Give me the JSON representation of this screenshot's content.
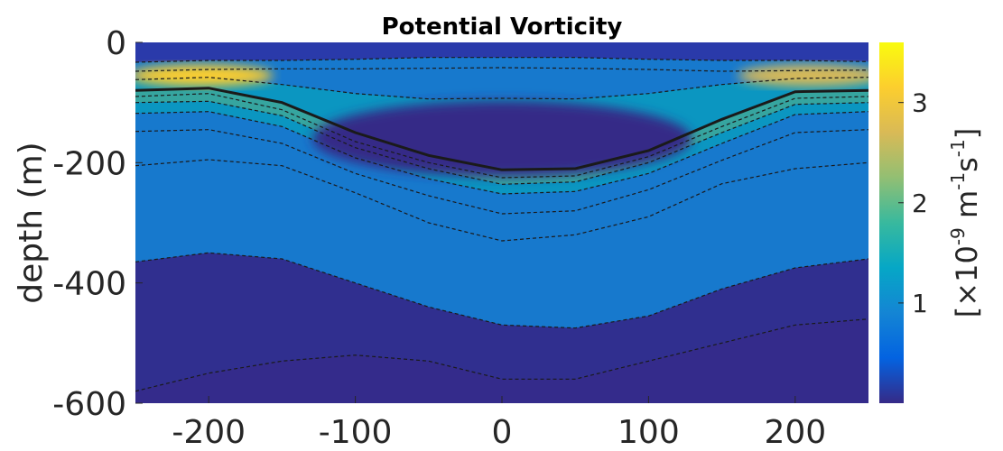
{
  "chart_data": {
    "type": "heatmap",
    "title": "Potential Vorticity",
    "xlabel": "",
    "ylabel": "depth (m)",
    "xlim": [
      -250,
      250
    ],
    "ylim": [
      -600,
      0
    ],
    "xticks": [
      -200,
      -100,
      0,
      100,
      200
    ],
    "yticks": [
      0,
      -200,
      -400,
      -600
    ],
    "xtick_labels": [
      "-200",
      "-100",
      "0",
      "100",
      "200"
    ],
    "ytick_labels": [
      "0",
      "-200",
      "-400",
      "-600"
    ],
    "grid": false,
    "colormap": "parula",
    "colorbar": {
      "range": [
        0,
        3.6
      ],
      "ticks": [
        1,
        2,
        3
      ],
      "tick_labels": [
        "1",
        "2",
        "3"
      ],
      "label_prefix": "[×10",
      "label_exp1": "-9",
      "label_mid": " m",
      "label_exp2": "-1",
      "label_mid2": "s",
      "label_exp3": "-1",
      "label_suffix": "]"
    },
    "high_pv_band": {
      "edge_peak_value": 3.4,
      "edge_depth_m": -55,
      "center_depth_m": -225,
      "low_pv_core": {
        "x_center": 0,
        "depth_m": -160,
        "value": 0.1
      }
    },
    "contours": [
      {
        "style": "dashed",
        "x": [
          -250,
          -200,
          -150,
          -100,
          -50,
          0,
          50,
          100,
          150,
          200,
          250
        ],
        "y": [
          -33,
          -30,
          -30,
          -28,
          -25,
          -25,
          -25,
          -28,
          -30,
          -30,
          -32
        ]
      },
      {
        "style": "dashed",
        "x": [
          -250,
          -200,
          -150,
          -100,
          -50,
          0,
          50,
          100,
          150,
          200,
          250
        ],
        "y": [
          -48,
          -45,
          -44,
          -44,
          -43,
          -42,
          -43,
          -45,
          -48,
          -47,
          -46
        ]
      },
      {
        "style": "dashed",
        "x": [
          -250,
          -200,
          -150,
          -100,
          -50,
          0,
          50,
          100,
          150,
          200,
          250
        ],
        "y": [
          -62,
          -58,
          -70,
          -85,
          -94,
          -93,
          -94,
          -85,
          -70,
          -60,
          -58
        ]
      },
      {
        "style": "solid",
        "x": [
          -250,
          -200,
          -150,
          -100,
          -50,
          0,
          50,
          100,
          150,
          200,
          250
        ],
        "y": [
          -80,
          -76,
          -100,
          -150,
          -188,
          -212,
          -210,
          -180,
          -128,
          -82,
          -80
        ]
      },
      {
        "style": "dashed",
        "x": [
          -250,
          -200,
          -150,
          -100,
          -50,
          0,
          50,
          100,
          150,
          200,
          250
        ],
        "y": [
          -90,
          -85,
          -112,
          -165,
          -200,
          -225,
          -222,
          -190,
          -140,
          -93,
          -90
        ]
      },
      {
        "style": "dashed",
        "x": [
          -250,
          -200,
          -150,
          -100,
          -50,
          0,
          50,
          100,
          150,
          200,
          250
        ],
        "y": [
          -100,
          -98,
          -122,
          -175,
          -210,
          -236,
          -232,
          -200,
          -150,
          -103,
          -100
        ]
      },
      {
        "style": "dashed",
        "x": [
          -250,
          -200,
          -150,
          -100,
          -50,
          0,
          50,
          100,
          150,
          200,
          250
        ],
        "y": [
          -118,
          -115,
          -140,
          -192,
          -227,
          -252,
          -248,
          -218,
          -168,
          -120,
          -115
        ]
      },
      {
        "style": "dashed",
        "x": [
          -250,
          -200,
          -150,
          -100,
          -50,
          0,
          50,
          100,
          150,
          200,
          250
        ],
        "y": [
          -148,
          -145,
          -168,
          -218,
          -255,
          -285,
          -280,
          -245,
          -196,
          -150,
          -145
        ]
      },
      {
        "style": "dashed",
        "x": [
          -250,
          -200,
          -150,
          -100,
          -50,
          0,
          50,
          100,
          150,
          200,
          250
        ],
        "y": [
          -205,
          -195,
          -205,
          -250,
          -300,
          -330,
          -320,
          -290,
          -235,
          -210,
          -200
        ]
      },
      {
        "style": "dashed",
        "x": [
          -250,
          -200,
          -150,
          -100,
          -50,
          0,
          50,
          100,
          150,
          200,
          250
        ],
        "y": [
          -365,
          -350,
          -360,
          -400,
          -440,
          -470,
          -475,
          -455,
          -410,
          -375,
          -360
        ]
      },
      {
        "style": "dashed",
        "x": [
          -250,
          -200,
          -150,
          -100,
          -50,
          0,
          50,
          100,
          150,
          200,
          250
        ],
        "y": [
          -580,
          -550,
          -530,
          -520,
          -530,
          -560,
          -560,
          -530,
          -500,
          -470,
          -460
        ]
      }
    ]
  },
  "colors": {
    "background": "#ffffff",
    "axis_text": "#262626",
    "contour": "#1a1a1a",
    "parula": [
      "#352a87",
      "#0363e1",
      "#1485d4",
      "#06a7c6",
      "#38b99e",
      "#92bf73",
      "#d9ba56",
      "#fcce2e",
      "#f9fb0e"
    ]
  }
}
